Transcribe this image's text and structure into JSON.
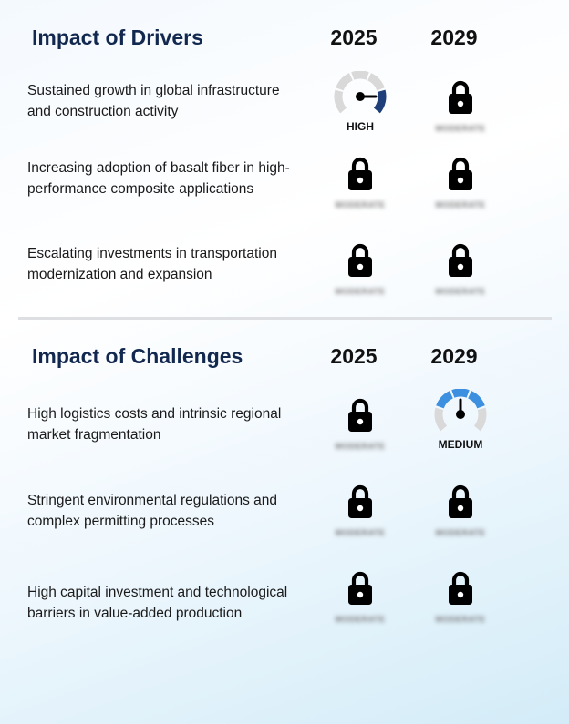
{
  "drivers": {
    "title": "Impact of Drivers",
    "year_1": "2025",
    "year_2": "2029",
    "rows": [
      {
        "label": "Sustained growth in global infrastructure and construction activity",
        "y2025": {
          "type": "gauge",
          "level": "HIGH",
          "color": "#1f3f7a"
        },
        "y2029": {
          "type": "locked",
          "blurred_text": "MODERATE"
        }
      },
      {
        "label": "Increasing adoption of basalt fiber in high-performance composite applications",
        "y2025": {
          "type": "locked",
          "blurred_text": "MODERATE"
        },
        "y2029": {
          "type": "locked",
          "blurred_text": "MODERATE"
        }
      },
      {
        "label": "Escalating investments in transportation modernization and expansion",
        "y2025": {
          "type": "locked",
          "blurred_text": "MODERATE"
        },
        "y2029": {
          "type": "locked",
          "blurred_text": "MODERATE"
        }
      }
    ]
  },
  "challenges": {
    "title": "Impact of Challenges",
    "year_1": "2025",
    "year_2": "2029",
    "rows": [
      {
        "label": "High logistics costs and intrinsic regional market fragmentation",
        "y2025": {
          "type": "locked",
          "blurred_text": "MODERATE"
        },
        "y2029": {
          "type": "gauge",
          "level": "MEDIUM",
          "color": "#3d8fe0"
        }
      },
      {
        "label": "Stringent environmental regulations and complex permitting processes",
        "y2025": {
          "type": "locked",
          "blurred_text": "MODERATE"
        },
        "y2029": {
          "type": "locked",
          "blurred_text": "MODERATE"
        }
      },
      {
        "label": "High capital investment and technological barriers in value-added production",
        "y2025": {
          "type": "locked",
          "blurred_text": "MODERATE"
        },
        "y2029": {
          "type": "locked",
          "blurred_text": "MODERATE"
        }
      }
    ]
  },
  "colors": {
    "title": "#12284f",
    "gauge_track": "#d9d9d9",
    "high": "#1f3f7a",
    "medium": "#3d8fe0"
  },
  "icons": {
    "lock": "lock-icon",
    "gauge": "gauge-icon"
  }
}
